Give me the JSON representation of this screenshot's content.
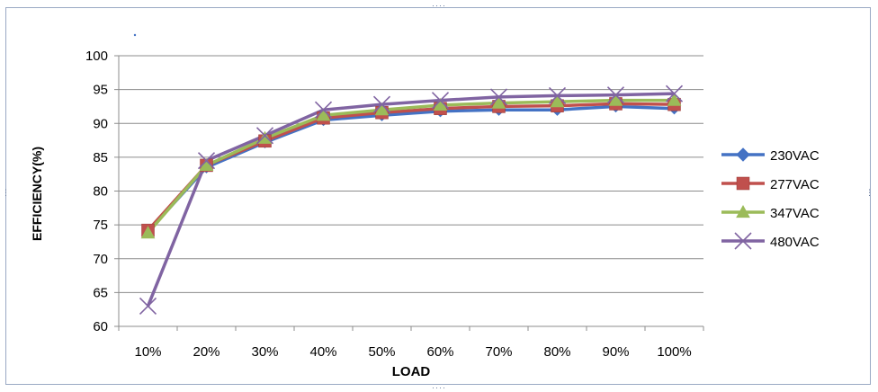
{
  "chart_data": {
    "type": "line",
    "xlabel": "LOAD",
    "ylabel": "EFFICIENCY(%)",
    "categories": [
      "10%",
      "20%",
      "30%",
      "40%",
      "50%",
      "60%",
      "70%",
      "80%",
      "90%",
      "100%"
    ],
    "ylim": [
      60,
      100
    ],
    "yticks": [
      60,
      65,
      70,
      75,
      80,
      85,
      90,
      95,
      100
    ],
    "grid": "horizontal",
    "legend_position": "right",
    "series": [
      {
        "name": "230VAC",
        "color": "#4472c4",
        "marker": "diamond",
        "values": [
          74,
          83.5,
          87.2,
          90.5,
          91.2,
          91.8,
          92.0,
          92.0,
          92.5,
          92.2
        ]
      },
      {
        "name": "277VAC",
        "color": "#c0504d",
        "marker": "square",
        "values": [
          74.2,
          83.8,
          87.4,
          90.8,
          91.6,
          92.2,
          92.5,
          92.6,
          92.9,
          92.8
        ]
      },
      {
        "name": "347VAC",
        "color": "#9bbb59",
        "marker": "triangle",
        "values": [
          73.8,
          83.8,
          87.8,
          91.2,
          92.0,
          92.7,
          93.0,
          93.2,
          93.4,
          93.4
        ]
      },
      {
        "name": "480VAC",
        "color": "#8064a2",
        "marker": "x",
        "values": [
          63,
          84.5,
          88.2,
          92.0,
          92.8,
          93.4,
          93.9,
          94.1,
          94.2,
          94.4
        ]
      }
    ]
  }
}
